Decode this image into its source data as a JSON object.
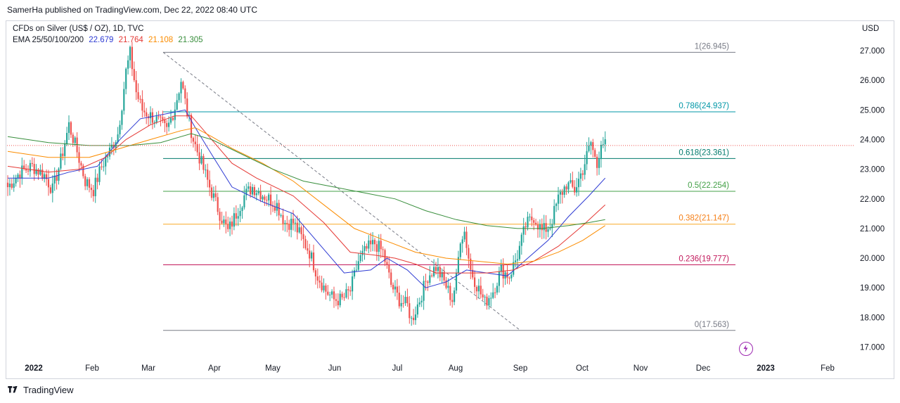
{
  "header": {
    "publish_text": "SamerHa published on TradingView.com, Dec 22, 2022 08:40 UTC"
  },
  "legend": {
    "title": "CFDs on Silver (US$ / OZ), 1D, TVC",
    "ema_label": "EMA 25/50/100/200",
    "ema_values": [
      {
        "value": "22.679",
        "color": "#2e3bd3"
      },
      {
        "value": "21.764",
        "color": "#e53935"
      },
      {
        "value": "21.108",
        "color": "#fb8c00"
      },
      {
        "value": "21.305",
        "color": "#388e3c"
      }
    ]
  },
  "currency": "USD",
  "footer": {
    "brand": "TradingView"
  },
  "chart_data": {
    "type": "candlestick",
    "title": "CFDs on Silver (US$ / OZ), 1D, TVC",
    "ylim": [
      16.7,
      27.5
    ],
    "y_ticks": [
      "17.000",
      "18.000",
      "19.000",
      "20.000",
      "21.000",
      "22.000",
      "23.000",
      "24.000",
      "25.000",
      "26.000",
      "27.000"
    ],
    "x_tick_labels": [
      "2022",
      "Feb",
      "Mar",
      "Apr",
      "May",
      "Jun",
      "Jul",
      "Aug",
      "Sep",
      "Oct",
      "Nov",
      "Dec",
      "2023",
      "Feb"
    ],
    "fibonacci": [
      {
        "label": "1(26.945)",
        "value": 26.945,
        "color": "#787b86",
        "text_color": "#787b86"
      },
      {
        "label": "0.786(24.937)",
        "value": 24.937,
        "color": "#0097a7",
        "text_color": "#0097a7"
      },
      {
        "label": "0.618(23.361)",
        "value": 23.361,
        "color": "#00796b",
        "text_color": "#00796b"
      },
      {
        "label": "0.5(22.254)",
        "value": 22.254,
        "color": "#43a047",
        "text_color": "#43a047"
      },
      {
        "label": "0.382(21.147)",
        "value": 21.147,
        "color": "#f9a825",
        "text_color": "#f57f17"
      },
      {
        "label": "0.236(19.777)",
        "value": 19.777,
        "color": "#c2185b",
        "text_color": "#c2185b"
      },
      {
        "label": "0(17.563)",
        "value": 17.563,
        "color": "#787b86",
        "text_color": "#787b86"
      }
    ],
    "last_price": 23.8,
    "close_path": [
      [
        0,
        22.4
      ],
      [
        6,
        22.9
      ],
      [
        12,
        23.1
      ],
      [
        18,
        22.8
      ],
      [
        22,
        22.3
      ],
      [
        26,
        23.3
      ],
      [
        30,
        24.5
      ],
      [
        34,
        23.6
      ],
      [
        38,
        22.6
      ],
      [
        42,
        22.3
      ],
      [
        46,
        23.1
      ],
      [
        50,
        23.6
      ],
      [
        54,
        24.2
      ],
      [
        56,
        25.2
      ],
      [
        58,
        26.3
      ],
      [
        60,
        26.9
      ],
      [
        63,
        25.6
      ],
      [
        66,
        25.0
      ],
      [
        70,
        24.8
      ],
      [
        74,
        24.6
      ],
      [
        78,
        24.3
      ],
      [
        82,
        25.1
      ],
      [
        85,
        26.0
      ],
      [
        88,
        24.9
      ],
      [
        91,
        24.0
      ],
      [
        95,
        23.2
      ],
      [
        99,
        22.4
      ],
      [
        104,
        21.5
      ],
      [
        108,
        20.9
      ],
      [
        112,
        21.5
      ],
      [
        116,
        22.1
      ],
      [
        120,
        22.4
      ],
      [
        124,
        22.2
      ],
      [
        128,
        22.0
      ],
      [
        132,
        21.8
      ],
      [
        136,
        21.2
      ],
      [
        140,
        21.2
      ],
      [
        144,
        20.7
      ],
      [
        148,
        20.2
      ],
      [
        152,
        19.4
      ],
      [
        156,
        18.9
      ],
      [
        160,
        18.6
      ],
      [
        164,
        18.6
      ],
      [
        168,
        18.9
      ],
      [
        172,
        19.9
      ],
      [
        176,
        20.3
      ],
      [
        180,
        20.5
      ],
      [
        184,
        20.2
      ],
      [
        188,
        19.1
      ],
      [
        192,
        18.6
      ],
      [
        196,
        18.4
      ],
      [
        198,
        17.9
      ],
      [
        202,
        18.6
      ],
      [
        206,
        19.4
      ],
      [
        210,
        19.7
      ],
      [
        214,
        19.2
      ],
      [
        218,
        18.6
      ],
      [
        220,
        19.3
      ],
      [
        222,
        20.7
      ],
      [
        224,
        20.9
      ],
      [
        227,
        19.6
      ],
      [
        230,
        19.1
      ],
      [
        234,
        18.5
      ],
      [
        238,
        18.9
      ],
      [
        242,
        19.6
      ],
      [
        246,
        19.4
      ],
      [
        250,
        20.1
      ],
      [
        254,
        21.1
      ],
      [
        258,
        21.4
      ],
      [
        262,
        20.9
      ],
      [
        266,
        21.1
      ],
      [
        270,
        22.0
      ],
      [
        274,
        22.5
      ],
      [
        278,
        22.3
      ],
      [
        282,
        23.0
      ],
      [
        286,
        23.9
      ],
      [
        289,
        23.1
      ],
      [
        291,
        24.0
      ],
      [
        293,
        23.8
      ]
    ],
    "ema_series": [
      {
        "name": "EMA 25",
        "value": 22.679,
        "color": "#2e3bd3",
        "points": [
          [
            0,
            22.7
          ],
          [
            20,
            22.7
          ],
          [
            30,
            22.9
          ],
          [
            44,
            23.1
          ],
          [
            55,
            24.0
          ],
          [
            65,
            24.7
          ],
          [
            80,
            24.9
          ],
          [
            87,
            25.0
          ],
          [
            92,
            24.4
          ],
          [
            100,
            23.5
          ],
          [
            110,
            22.4
          ],
          [
            125,
            21.9
          ],
          [
            140,
            21.5
          ],
          [
            155,
            20.3
          ],
          [
            165,
            19.5
          ],
          [
            178,
            19.6
          ],
          [
            186,
            20.0
          ],
          [
            196,
            19.6
          ],
          [
            205,
            19.0
          ],
          [
            215,
            19.2
          ],
          [
            225,
            19.6
          ],
          [
            235,
            19.5
          ],
          [
            245,
            19.4
          ],
          [
            255,
            20.0
          ],
          [
            265,
            20.6
          ],
          [
            275,
            21.4
          ],
          [
            285,
            22.1
          ],
          [
            293,
            22.7
          ]
        ]
      },
      {
        "name": "EMA 50",
        "value": 21.764,
        "color": "#e53935",
        "points": [
          [
            0,
            23.1
          ],
          [
            20,
            22.9
          ],
          [
            35,
            23.0
          ],
          [
            48,
            23.4
          ],
          [
            58,
            24.0
          ],
          [
            70,
            24.5
          ],
          [
            82,
            24.8
          ],
          [
            90,
            24.8
          ],
          [
            100,
            24.0
          ],
          [
            110,
            23.2
          ],
          [
            122,
            22.7
          ],
          [
            140,
            22.1
          ],
          [
            155,
            21.2
          ],
          [
            168,
            20.2
          ],
          [
            180,
            20.1
          ],
          [
            190,
            20.0
          ],
          [
            200,
            19.8
          ],
          [
            210,
            19.5
          ],
          [
            222,
            19.5
          ],
          [
            235,
            19.5
          ],
          [
            248,
            19.6
          ],
          [
            258,
            19.9
          ],
          [
            270,
            20.4
          ],
          [
            282,
            21.1
          ],
          [
            293,
            21.8
          ]
        ]
      },
      {
        "name": "EMA 100",
        "value": 21.108,
        "color": "#fb8c00",
        "points": [
          [
            0,
            23.6
          ],
          [
            20,
            23.4
          ],
          [
            40,
            23.4
          ],
          [
            55,
            23.7
          ],
          [
            70,
            24.0
          ],
          [
            85,
            24.3
          ],
          [
            92,
            24.4
          ],
          [
            100,
            24.1
          ],
          [
            110,
            23.7
          ],
          [
            125,
            23.2
          ],
          [
            140,
            22.6
          ],
          [
            155,
            21.8
          ],
          [
            170,
            21.0
          ],
          [
            185,
            20.6
          ],
          [
            200,
            20.2
          ],
          [
            215,
            20.0
          ],
          [
            230,
            19.9
          ],
          [
            245,
            19.8
          ],
          [
            258,
            19.9
          ],
          [
            270,
            20.2
          ],
          [
            282,
            20.6
          ],
          [
            293,
            21.1
          ]
        ]
      },
      {
        "name": "EMA 200",
        "value": 21.305,
        "color": "#388e3c",
        "points": [
          [
            0,
            24.1
          ],
          [
            20,
            23.9
          ],
          [
            40,
            23.8
          ],
          [
            60,
            23.8
          ],
          [
            75,
            23.9
          ],
          [
            90,
            24.2
          ],
          [
            100,
            24.0
          ],
          [
            115,
            23.5
          ],
          [
            130,
            23.0
          ],
          [
            145,
            22.6
          ],
          [
            160,
            22.4
          ],
          [
            175,
            22.2
          ],
          [
            190,
            22.0
          ],
          [
            205,
            21.6
          ],
          [
            220,
            21.3
          ],
          [
            235,
            21.1
          ],
          [
            250,
            21.0
          ],
          [
            262,
            21.0
          ],
          [
            275,
            21.1
          ],
          [
            285,
            21.2
          ],
          [
            293,
            21.3
          ]
        ]
      }
    ]
  }
}
